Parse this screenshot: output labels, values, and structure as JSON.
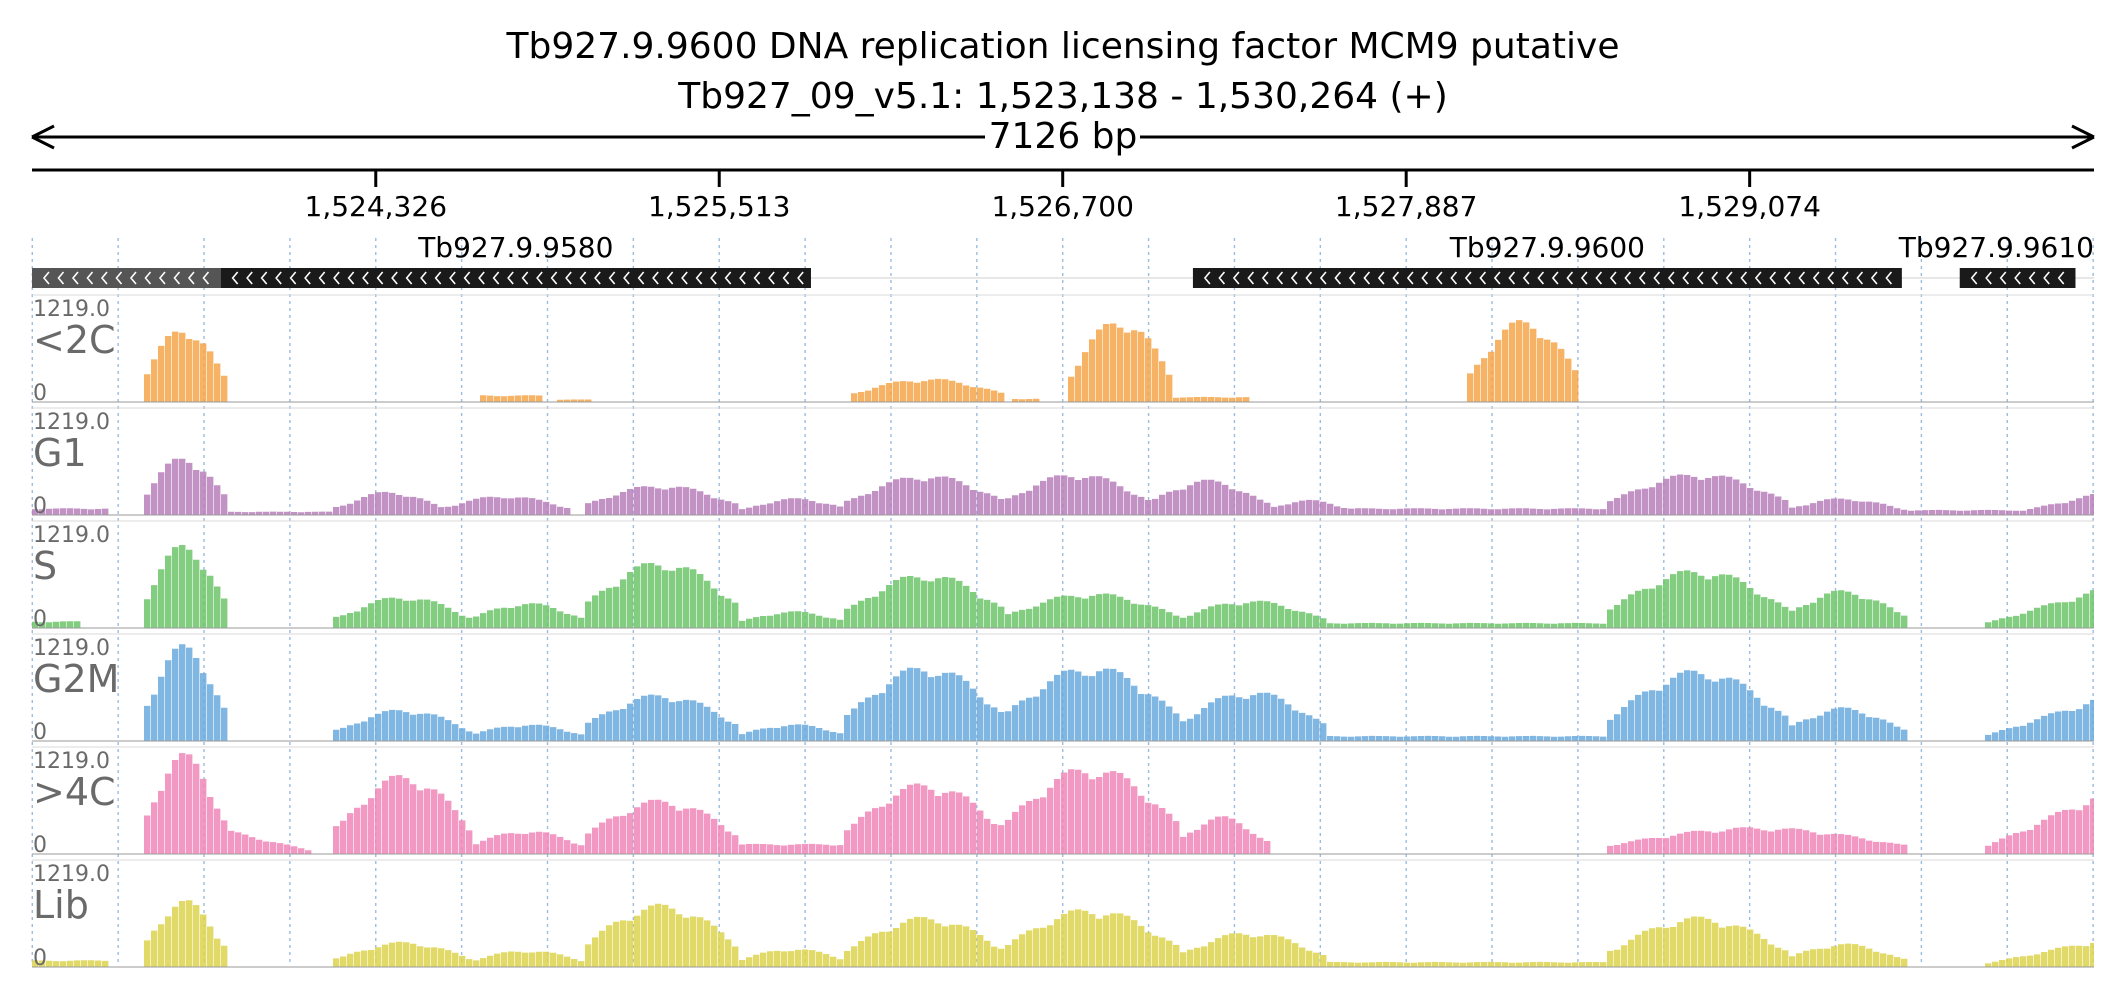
{
  "title": {
    "line1": "Tb927.9.9600  DNA replication licensing factor MCM9  putative",
    "line2": "Tb927_09_v5.1: 1,523,138 - 1,530,264 (+)"
  },
  "ruler": {
    "length_label": "7126 bp"
  },
  "colors": {
    "<2C": "#f5a54a",
    "G1": "#b77fbb",
    "S": "#6cc46a",
    "G2M": "#69a9dd",
    ">4C": "#ee86b8",
    "Lib": "#dcd34e",
    "gene": "#1a1a1a",
    "grid": "#7aa6d6"
  },
  "chart_data": {
    "type": "area",
    "chrom": "Tb927_09_v5.1",
    "xlim": [
      1523138,
      1530264
    ],
    "x_ticks": [
      1524326,
      1525513,
      1526700,
      1527887,
      1529074
    ],
    "x_tick_labels": [
      "1,524,326",
      "1,525,513",
      "1,526,700",
      "1,527,887",
      "1,529,074"
    ],
    "genes": [
      {
        "name": "",
        "start": 1523138,
        "end": 1523790,
        "strand": "-"
      },
      {
        "name": "Tb927.9.9580",
        "start": 1523790,
        "end": 1525830,
        "strand": "-"
      },
      {
        "name": "Tb927.9.9600",
        "start": 1527150,
        "end": 1529600,
        "strand": "-"
      },
      {
        "name": "Tb927.9.9610",
        "start": 1529800,
        "end": 1530200,
        "strand": "-"
      }
    ],
    "ylim": [
      0,
      1219
    ],
    "y_top_label": "1219.0",
    "y_bottom_label": "0",
    "tracks": [
      {
        "name": "<2C",
        "peaks": [
          {
            "s": 1523530,
            "e": 1523800,
            "h": 900,
            "shape": "hump"
          },
          {
            "s": 1524710,
            "e": 1524900,
            "h": 80,
            "shape": "flat"
          },
          {
            "s": 1524970,
            "e": 1525050,
            "h": 30,
            "shape": "flat"
          },
          {
            "s": 1525970,
            "e": 1526500,
            "h": 280,
            "shape": "hump"
          },
          {
            "s": 1526540,
            "e": 1526600,
            "h": 40,
            "shape": "flat"
          },
          {
            "s": 1526730,
            "e": 1527070,
            "h": 1000,
            "shape": "hump"
          },
          {
            "s": 1527100,
            "e": 1527330,
            "h": 60,
            "shape": "flat"
          },
          {
            "s": 1528110,
            "e": 1528480,
            "h": 980,
            "shape": "hump"
          }
        ]
      },
      {
        "name": "G1",
        "peaks": [
          {
            "s": 1523138,
            "e": 1523400,
            "h": 80,
            "shape": "flat"
          },
          {
            "s": 1523530,
            "e": 1523800,
            "h": 700,
            "shape": "hump"
          },
          {
            "s": 1523800,
            "e": 1524200,
            "h": 40,
            "shape": "flat"
          },
          {
            "s": 1524200,
            "e": 1524550,
            "h": 280,
            "shape": "hump"
          },
          {
            "s": 1524550,
            "e": 1525000,
            "h": 230,
            "shape": "hump"
          },
          {
            "s": 1525050,
            "e": 1525580,
            "h": 360,
            "shape": "hump"
          },
          {
            "s": 1525600,
            "e": 1525960,
            "h": 200,
            "shape": "hump"
          },
          {
            "s": 1525960,
            "e": 1526500,
            "h": 480,
            "shape": "hump"
          },
          {
            "s": 1526500,
            "e": 1527000,
            "h": 500,
            "shape": "hump"
          },
          {
            "s": 1527000,
            "e": 1527400,
            "h": 420,
            "shape": "hump"
          },
          {
            "s": 1527400,
            "e": 1527700,
            "h": 180,
            "shape": "hump"
          },
          {
            "s": 1527700,
            "e": 1528600,
            "h": 80,
            "shape": "flat"
          },
          {
            "s": 1528600,
            "e": 1529200,
            "h": 500,
            "shape": "hump"
          },
          {
            "s": 1529200,
            "e": 1529600,
            "h": 200,
            "shape": "hump"
          },
          {
            "s": 1529600,
            "e": 1530000,
            "h": 60,
            "shape": "flat"
          },
          {
            "s": 1530000,
            "e": 1530264,
            "h": 250,
            "shape": "rise"
          }
        ]
      },
      {
        "name": "S",
        "peaks": [
          {
            "s": 1523138,
            "e": 1523300,
            "h": 80,
            "shape": "flat"
          },
          {
            "s": 1523530,
            "e": 1523800,
            "h": 1000,
            "shape": "hump"
          },
          {
            "s": 1524200,
            "e": 1524650,
            "h": 380,
            "shape": "hump"
          },
          {
            "s": 1524650,
            "e": 1525050,
            "h": 300,
            "shape": "hump"
          },
          {
            "s": 1525050,
            "e": 1525580,
            "h": 800,
            "shape": "hump"
          },
          {
            "s": 1525580,
            "e": 1525960,
            "h": 200,
            "shape": "hump"
          },
          {
            "s": 1525960,
            "e": 1526500,
            "h": 650,
            "shape": "hump"
          },
          {
            "s": 1526500,
            "e": 1527100,
            "h": 420,
            "shape": "hump"
          },
          {
            "s": 1527100,
            "e": 1527600,
            "h": 330,
            "shape": "hump"
          },
          {
            "s": 1527600,
            "e": 1528600,
            "h": 60,
            "shape": "flat"
          },
          {
            "s": 1528600,
            "e": 1529200,
            "h": 700,
            "shape": "hump"
          },
          {
            "s": 1529200,
            "e": 1529600,
            "h": 450,
            "shape": "hump"
          },
          {
            "s": 1529900,
            "e": 1530264,
            "h": 450,
            "shape": "rise"
          }
        ]
      },
      {
        "name": "G2M",
        "peaks": [
          {
            "s": 1523530,
            "e": 1523800,
            "h": 1150,
            "shape": "hump"
          },
          {
            "s": 1524200,
            "e": 1524650,
            "h": 380,
            "shape": "hump"
          },
          {
            "s": 1524650,
            "e": 1525050,
            "h": 200,
            "shape": "hump"
          },
          {
            "s": 1525050,
            "e": 1525580,
            "h": 560,
            "shape": "hump"
          },
          {
            "s": 1525580,
            "e": 1525960,
            "h": 200,
            "shape": "hump"
          },
          {
            "s": 1525960,
            "e": 1526500,
            "h": 900,
            "shape": "hump"
          },
          {
            "s": 1526500,
            "e": 1527100,
            "h": 900,
            "shape": "hump"
          },
          {
            "s": 1527100,
            "e": 1527600,
            "h": 600,
            "shape": "hump"
          },
          {
            "s": 1527600,
            "e": 1528600,
            "h": 60,
            "shape": "flat"
          },
          {
            "s": 1528600,
            "e": 1529200,
            "h": 850,
            "shape": "hump"
          },
          {
            "s": 1529200,
            "e": 1529600,
            "h": 400,
            "shape": "hump"
          },
          {
            "s": 1529900,
            "e": 1530264,
            "h": 500,
            "shape": "rise"
          }
        ]
      },
      {
        "name": ">4C",
        "peaks": [
          {
            "s": 1523530,
            "e": 1523800,
            "h": 1200,
            "shape": "hump"
          },
          {
            "s": 1523800,
            "e": 1524100,
            "h": 300,
            "shape": "fall"
          },
          {
            "s": 1524200,
            "e": 1524650,
            "h": 950,
            "shape": "hump"
          },
          {
            "s": 1524650,
            "e": 1525050,
            "h": 280,
            "shape": "hump"
          },
          {
            "s": 1525050,
            "e": 1525580,
            "h": 650,
            "shape": "hump"
          },
          {
            "s": 1525580,
            "e": 1525960,
            "h": 120,
            "shape": "flat"
          },
          {
            "s": 1525960,
            "e": 1526500,
            "h": 850,
            "shape": "hump"
          },
          {
            "s": 1526500,
            "e": 1527100,
            "h": 1050,
            "shape": "hump"
          },
          {
            "s": 1527100,
            "e": 1527400,
            "h": 450,
            "shape": "hump"
          },
          {
            "s": 1528600,
            "e": 1529600,
            "h": 320,
            "shape": "hump"
          },
          {
            "s": 1529900,
            "e": 1530264,
            "h": 700,
            "shape": "rise"
          }
        ]
      },
      {
        "name": "Lib",
        "peaks": [
          {
            "s": 1523138,
            "e": 1523400,
            "h": 80,
            "shape": "flat"
          },
          {
            "s": 1523530,
            "e": 1523800,
            "h": 800,
            "shape": "hump"
          },
          {
            "s": 1524200,
            "e": 1524650,
            "h": 300,
            "shape": "hump"
          },
          {
            "s": 1524650,
            "e": 1525050,
            "h": 200,
            "shape": "hump"
          },
          {
            "s": 1525050,
            "e": 1525580,
            "h": 750,
            "shape": "hump"
          },
          {
            "s": 1525580,
            "e": 1525960,
            "h": 220,
            "shape": "hump"
          },
          {
            "s": 1525960,
            "e": 1526500,
            "h": 600,
            "shape": "hump"
          },
          {
            "s": 1526500,
            "e": 1527100,
            "h": 700,
            "shape": "hump"
          },
          {
            "s": 1527100,
            "e": 1527600,
            "h": 420,
            "shape": "hump"
          },
          {
            "s": 1527600,
            "e": 1528600,
            "h": 60,
            "shape": "flat"
          },
          {
            "s": 1528600,
            "e": 1529200,
            "h": 600,
            "shape": "hump"
          },
          {
            "s": 1529200,
            "e": 1529600,
            "h": 280,
            "shape": "hump"
          },
          {
            "s": 1529900,
            "e": 1530264,
            "h": 320,
            "shape": "rise"
          }
        ]
      }
    ]
  }
}
